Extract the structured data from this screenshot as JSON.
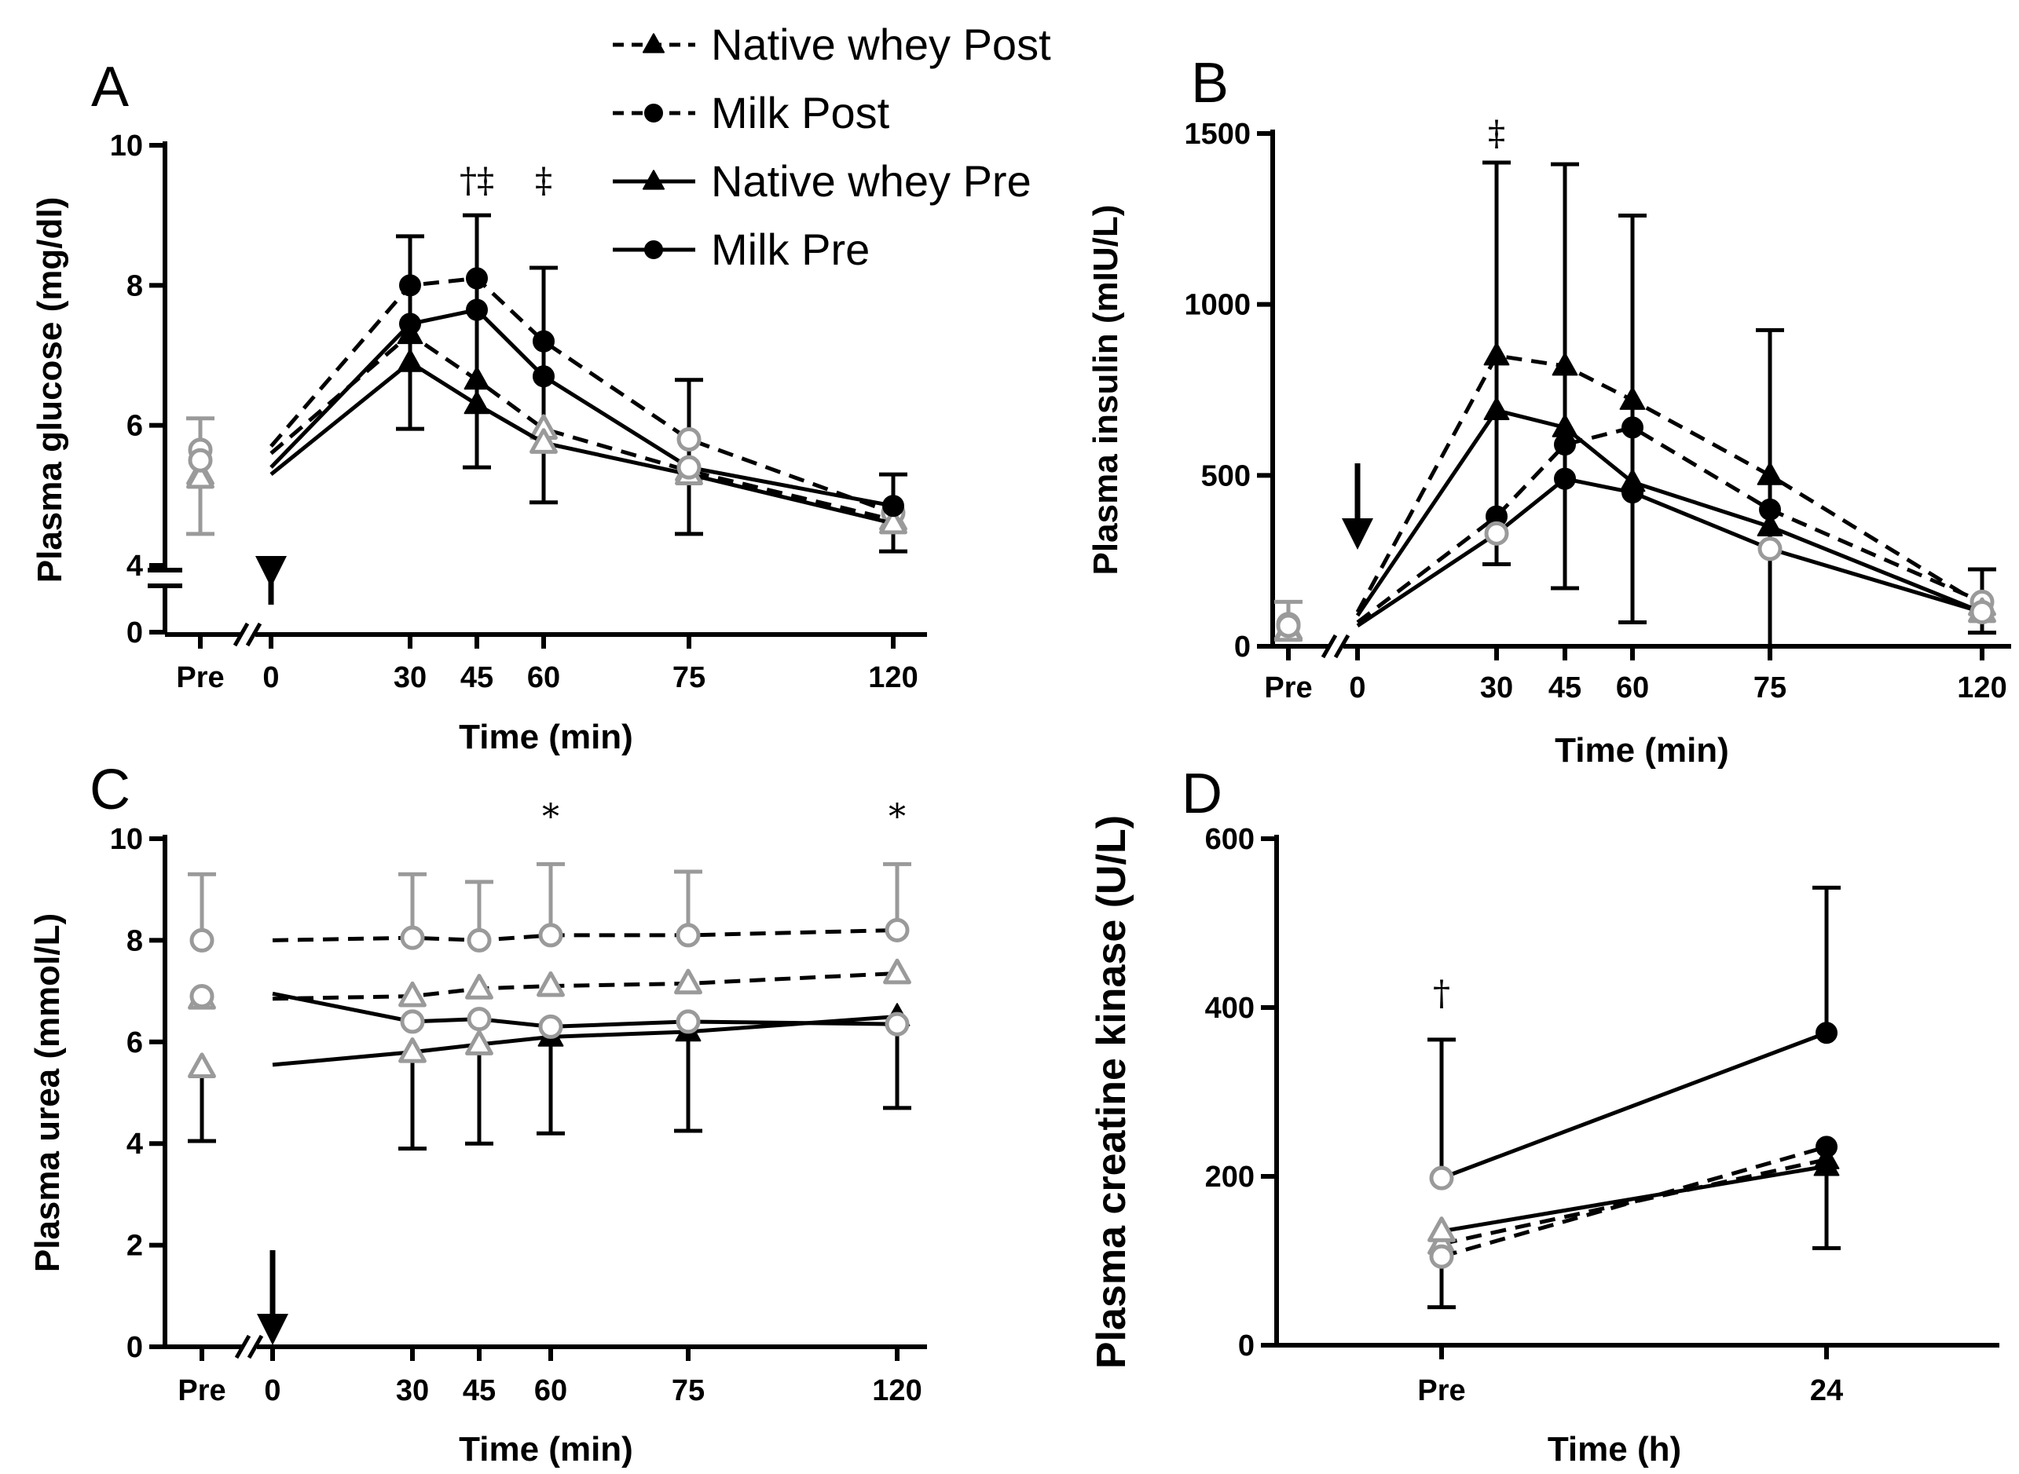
{
  "legend": [
    {
      "label": "Native whey Post",
      "marker": "triangle",
      "dash": true
    },
    {
      "label": "Milk Post",
      "marker": "circle",
      "dash": true
    },
    {
      "label": "Native whey Pre",
      "marker": "triangle",
      "dash": false
    },
    {
      "label": "Milk Pre",
      "marker": "circle",
      "dash": false
    }
  ],
  "colors": {
    "black": "#000000",
    "grey": "#9a9a9a"
  },
  "chart_data": [
    {
      "panel": "A",
      "type": "line",
      "xlabel": "Time (min)",
      "ylabel": "Plasma  glucose (mg/dl)",
      "xticks": [
        "Pre",
        "0",
        "30",
        "45",
        "60",
        "75",
        "120"
      ],
      "yticks": [
        {
          "value": 0,
          "label": "0"
        },
        {
          "value": 4,
          "label": "4"
        },
        {
          "value": 6,
          "label": "6"
        },
        {
          "value": 8,
          "label": "8"
        },
        {
          "value": 10,
          "label": "10"
        }
      ],
      "ylim": [
        4,
        10
      ],
      "axis_break": true,
      "arrow_at": "0",
      "series": [
        {
          "name": "Native whey Post",
          "dash": true,
          "marker": "triangle",
          "pre": 5.3,
          "x": [
            0,
            30,
            45,
            60,
            75,
            120
          ],
          "values": [
            5.6,
            7.3,
            6.65,
            5.95,
            5.35,
            4.65
          ],
          "hollow": [
            false,
            false,
            false,
            true,
            true,
            true
          ]
        },
        {
          "name": "Milk Post",
          "dash": true,
          "marker": "circle",
          "pre": 5.65,
          "x": [
            0,
            30,
            45,
            60,
            75,
            120
          ],
          "values": [
            5.7,
            8.0,
            8.1,
            7.2,
            5.8,
            4.75
          ],
          "hollow": [
            false,
            false,
            false,
            false,
            true,
            true
          ]
        },
        {
          "name": "Native whey Pre",
          "dash": false,
          "marker": "triangle",
          "pre": 5.25,
          "x": [
            0,
            30,
            45,
            60,
            75,
            120
          ],
          "values": [
            5.3,
            6.9,
            6.3,
            5.75,
            5.3,
            4.6
          ],
          "hollow": [
            false,
            false,
            false,
            true,
            true,
            true
          ]
        },
        {
          "name": "Milk Pre",
          "dash": false,
          "marker": "circle",
          "pre": 5.5,
          "x": [
            0,
            30,
            45,
            60,
            75,
            120
          ],
          "values": [
            5.4,
            7.45,
            7.65,
            6.7,
            5.4,
            4.85
          ],
          "hollow": [
            false,
            false,
            false,
            false,
            true,
            false
          ]
        }
      ],
      "error_bars": [
        {
          "x": "Pre",
          "center": 5.5,
          "upper": 6.1,
          "lower": 4.45,
          "grey": true
        },
        {
          "x": 30,
          "center": 8.0,
          "upper": 8.7,
          "lower": 5.95
        },
        {
          "x": 45,
          "center": 8.1,
          "upper": 9.0,
          "lower": 5.4
        },
        {
          "x": 60,
          "center": 7.2,
          "upper": 8.25,
          "lower": 4.9
        },
        {
          "x": 75,
          "center": 5.8,
          "upper": 6.65,
          "lower": 4.45
        },
        {
          "x": 120,
          "center": 4.85,
          "upper": 5.3,
          "lower": 4.2
        }
      ],
      "annotations": [
        {
          "x": 45,
          "text": "†‡"
        },
        {
          "x": 60,
          "text": "‡"
        }
      ]
    },
    {
      "panel": "B",
      "type": "line",
      "xlabel": "Time (min)",
      "ylabel": "Plasma insulin (mIU/L)",
      "xticks": [
        "Pre",
        "0",
        "30",
        "45",
        "60",
        "75",
        "120"
      ],
      "yticks": [
        {
          "value": 0,
          "label": "0"
        },
        {
          "value": 500,
          "label": "500"
        },
        {
          "value": 1000,
          "label": "1000"
        },
        {
          "value": 1500,
          "label": "1500"
        }
      ],
      "ylim": [
        0,
        1500
      ],
      "axis_break": false,
      "arrow_at": "0",
      "series": [
        {
          "name": "Native whey Post",
          "dash": true,
          "marker": "triangle",
          "pre": 50,
          "x": [
            0,
            30,
            45,
            60,
            75,
            120
          ],
          "values": [
            100,
            850,
            820,
            720,
            500,
            120
          ],
          "hollow": [
            false,
            false,
            false,
            false,
            false,
            true
          ]
        },
        {
          "name": "Milk Post",
          "dash": true,
          "marker": "circle",
          "pre": 65,
          "x": [
            0,
            30,
            45,
            60,
            75,
            120
          ],
          "values": [
            70,
            380,
            590,
            640,
            400,
            130
          ],
          "hollow": [
            false,
            false,
            false,
            false,
            false,
            true
          ]
        },
        {
          "name": "Native whey Pre",
          "dash": false,
          "marker": "triangle",
          "pre": 45,
          "x": [
            0,
            30,
            45,
            60,
            75,
            120
          ],
          "values": [
            90,
            690,
            640,
            480,
            350,
            100
          ],
          "hollow": [
            false,
            false,
            false,
            false,
            false,
            true
          ]
        },
        {
          "name": "Milk Pre",
          "dash": false,
          "marker": "circle",
          "pre": 60,
          "x": [
            0,
            30,
            45,
            60,
            75,
            120
          ],
          "values": [
            60,
            330,
            490,
            450,
            285,
            100
          ],
          "hollow": [
            false,
            true,
            false,
            false,
            true,
            true
          ]
        }
      ],
      "error_bars": [
        {
          "x": "Pre",
          "center": 60,
          "upper": 130,
          "lower": 20,
          "grey": true
        },
        {
          "x": 30,
          "center": 850,
          "upper": 1415,
          "lower": 240
        },
        {
          "x": 45,
          "center": 820,
          "upper": 1410,
          "lower": 170
        },
        {
          "x": 60,
          "center": 720,
          "upper": 1260,
          "lower": 70
        },
        {
          "x": 75,
          "center": 500,
          "upper": 925,
          "lower": 0
        },
        {
          "x": 120,
          "center": 130,
          "upper": 225,
          "lower": 40
        }
      ],
      "annotations": [
        {
          "x": 30,
          "text": "‡"
        }
      ]
    },
    {
      "panel": "C",
      "type": "line",
      "xlabel": "Time (min)",
      "ylabel": "Plasma urea (mmol/L)",
      "xticks": [
        "Pre",
        "0",
        "30",
        "45",
        "60",
        "75",
        "120"
      ],
      "yticks": [
        {
          "value": 0,
          "label": "0"
        },
        {
          "value": 2,
          "label": "2"
        },
        {
          "value": 4,
          "label": "4"
        },
        {
          "value": 6,
          "label": "6"
        },
        {
          "value": 8,
          "label": "8"
        },
        {
          "value": 10,
          "label": "10"
        }
      ],
      "ylim": [
        0,
        10
      ],
      "axis_break": false,
      "arrow_at": "0",
      "series": [
        {
          "name": "Native whey Post",
          "dash": true,
          "marker": "triangle",
          "pre": 6.85,
          "x": [
            0,
            30,
            45,
            60,
            75,
            120
          ],
          "values": [
            6.85,
            6.9,
            7.05,
            7.1,
            7.15,
            7.35
          ],
          "hollow": [
            false,
            true,
            true,
            true,
            true,
            true
          ]
        },
        {
          "name": "Milk Post",
          "dash": true,
          "marker": "circle",
          "pre": 8.0,
          "x": [
            0,
            30,
            45,
            60,
            75,
            120
          ],
          "values": [
            8.0,
            8.05,
            8.0,
            8.1,
            8.1,
            8.2
          ],
          "hollow": [
            false,
            true,
            true,
            true,
            true,
            true
          ]
        },
        {
          "name": "Native whey Pre",
          "dash": false,
          "marker": "triangle",
          "pre": 5.5,
          "x": [
            0,
            30,
            45,
            60,
            75,
            120
          ],
          "values": [
            5.55,
            5.8,
            5.95,
            6.1,
            6.2,
            6.5
          ],
          "hollow": [
            false,
            true,
            true,
            false,
            false,
            false
          ]
        },
        {
          "name": "Milk Pre",
          "dash": false,
          "marker": "circle",
          "pre": 6.9,
          "x": [
            0,
            30,
            45,
            60,
            75,
            120
          ],
          "values": [
            6.95,
            6.4,
            6.45,
            6.3,
            6.4,
            6.35
          ],
          "hollow": [
            false,
            true,
            true,
            true,
            true,
            true
          ]
        }
      ],
      "error_bars": [
        {
          "x": "Pre",
          "center": 8.0,
          "upper": 9.3,
          "grey": true
        },
        {
          "x": "Pre",
          "center": 5.5,
          "lower": 4.05
        },
        {
          "x": 30,
          "center": 8.05,
          "upper": 9.3,
          "grey": true
        },
        {
          "x": 30,
          "center": 5.8,
          "lower": 3.9
        },
        {
          "x": 45,
          "center": 8.0,
          "upper": 9.15,
          "grey": true
        },
        {
          "x": 45,
          "center": 5.95,
          "lower": 4.0
        },
        {
          "x": 60,
          "center": 8.1,
          "upper": 9.5,
          "grey": true
        },
        {
          "x": 60,
          "center": 6.1,
          "lower": 4.2
        },
        {
          "x": 75,
          "center": 8.1,
          "upper": 9.35,
          "grey": true
        },
        {
          "x": 75,
          "center": 6.2,
          "lower": 4.25
        },
        {
          "x": 120,
          "center": 8.2,
          "upper": 9.5,
          "grey": true
        },
        {
          "x": 120,
          "center": 6.35,
          "lower": 4.7
        }
      ],
      "annotations": [
        {
          "x": 60,
          "text": "*"
        },
        {
          "x": 120,
          "text": "*"
        }
      ]
    },
    {
      "panel": "D",
      "type": "line",
      "xlabel": "Time (h)",
      "ylabel": "Plasma creatine kinase (U/L)",
      "xticks": [
        "Pre",
        "24"
      ],
      "yticks": [
        {
          "value": 0,
          "label": "0"
        },
        {
          "value": 200,
          "label": "200"
        },
        {
          "value": 400,
          "label": "400"
        },
        {
          "value": 600,
          "label": "600"
        }
      ],
      "ylim": [
        0,
        600
      ],
      "axis_break": false,
      "series": [
        {
          "name": "Native whey Post",
          "dash": true,
          "marker": "triangle",
          "x": [
            "Pre",
            "24"
          ],
          "values": [
            120,
            220
          ],
          "hollow": [
            true,
            false
          ]
        },
        {
          "name": "Milk Post",
          "dash": true,
          "marker": "circle",
          "x": [
            "Pre",
            "24"
          ],
          "values": [
            105,
            235
          ],
          "hollow": [
            true,
            false
          ]
        },
        {
          "name": "Native whey Pre",
          "dash": false,
          "marker": "triangle",
          "x": [
            "Pre",
            "24"
          ],
          "values": [
            135,
            212
          ],
          "hollow": [
            true,
            false
          ]
        },
        {
          "name": "Milk Pre",
          "dash": false,
          "marker": "circle",
          "x": [
            "Pre",
            "24"
          ],
          "values": [
            198,
            370
          ],
          "hollow": [
            true,
            false
          ]
        }
      ],
      "error_bars": [
        {
          "x": "Pre",
          "center": 198,
          "upper": 362
        },
        {
          "x": "Pre",
          "center": 105,
          "lower": 45
        },
        {
          "x": "24",
          "center": 370,
          "upper": 542
        },
        {
          "x": "24",
          "center": 212,
          "lower": 115
        }
      ],
      "annotations": [
        {
          "x": "Pre",
          "text": "†"
        }
      ]
    }
  ]
}
